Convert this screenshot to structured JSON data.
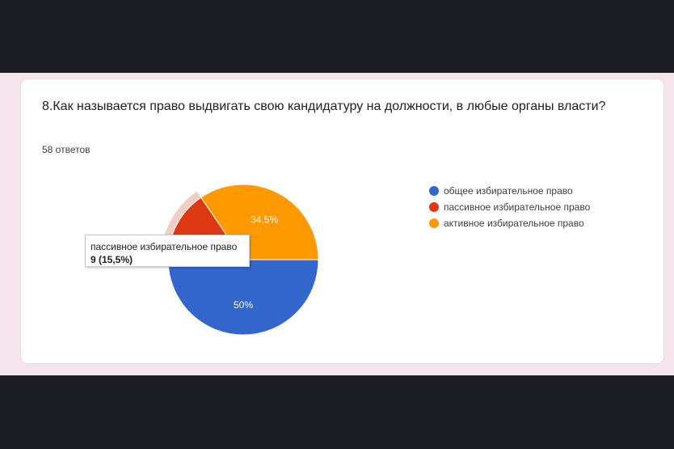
{
  "question": {
    "title": "8.Как называется право выдвигать свою кандидатуру на должности, в любые органы власти?",
    "responses": "58 ответов"
  },
  "colors": {
    "blue": "#3366cc",
    "red": "#dc3912",
    "orange": "#ff9900"
  },
  "chart_data": {
    "type": "pie",
    "categories": [
      "общее избирательное право",
      "пассивное избирательное право",
      "активное избирательное право"
    ],
    "values": [
      50,
      15.5,
      34.5
    ],
    "data_labels": [
      "50%",
      "15,5%",
      "34,5%"
    ],
    "legend_placement": "right",
    "highlighted_slice": 1
  },
  "tooltip": {
    "name": "пассивное избирательное право",
    "value": "9 (15,5%)"
  }
}
